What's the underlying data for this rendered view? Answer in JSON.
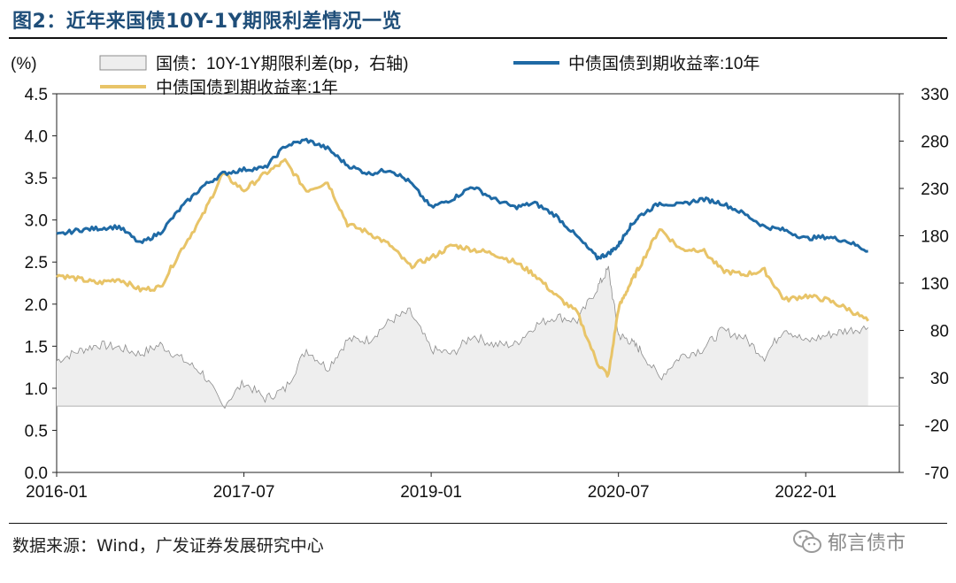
{
  "title": "图2：近年来国债10Y-1Y期限利差情况一览",
  "source": "数据来源：Wind，广发证券发展研究中心",
  "watermark": {
    "text": "郁言债市",
    "icon": "wechat-icon"
  },
  "colors": {
    "series10y": "#1f6aa5",
    "series1y": "#e8c468",
    "spreadFill": "#eeeeee",
    "spreadLine": "#8c8c8c",
    "axis": "#222222"
  },
  "chart_data": {
    "type": "line",
    "title": "图2：近年来国债10Y-1Y期限利差情况一览",
    "ylabel_left": "(%)",
    "left_ylim": [
      0.0,
      4.5
    ],
    "left_ticks": [
      "0.0",
      "0.5",
      "1.0",
      "1.5",
      "2.0",
      "2.5",
      "3.0",
      "3.5",
      "4.0",
      "4.5"
    ],
    "right_ylim": [
      -70,
      330
    ],
    "right_ticks": [
      "-70",
      "-20",
      "30",
      "80",
      "130",
      "180",
      "230",
      "280",
      "330"
    ],
    "x_ticks": [
      "2016-01",
      "2017-07",
      "2019-01",
      "2020-07",
      "2022-01"
    ],
    "legend": [
      {
        "name": "国债：10Y-1Y期限利差(bp，右轴)",
        "kind": "area"
      },
      {
        "name": "中债国债到期收益率:10年",
        "kind": "line"
      },
      {
        "name": "中债国债到期收益率:1年",
        "kind": "line"
      }
    ],
    "x": [
      2016.0,
      2016.17,
      2016.33,
      2016.5,
      2016.67,
      2016.83,
      2017.0,
      2017.17,
      2017.33,
      2017.5,
      2017.67,
      2017.83,
      2018.0,
      2018.17,
      2018.33,
      2018.5,
      2018.67,
      2018.83,
      2019.0,
      2019.17,
      2019.33,
      2019.5,
      2019.67,
      2019.83,
      2020.0,
      2020.17,
      2020.33,
      2020.42,
      2020.5,
      2020.58,
      2020.67,
      2020.83,
      2021.0,
      2021.17,
      2021.33,
      2021.5,
      2021.67,
      2021.83,
      2022.0,
      2022.17,
      2022.33,
      2022.5
    ],
    "series": [
      {
        "name": "中债国债到期收益率:10年",
        "axis": "left",
        "values": [
          2.82,
          2.88,
          2.9,
          2.92,
          2.72,
          2.85,
          3.15,
          3.4,
          3.55,
          3.6,
          3.62,
          3.88,
          3.95,
          3.85,
          3.65,
          3.55,
          3.6,
          3.45,
          3.15,
          3.25,
          3.4,
          3.25,
          3.15,
          3.2,
          3.05,
          2.8,
          2.55,
          2.6,
          2.7,
          2.9,
          3.05,
          3.2,
          3.18,
          3.25,
          3.2,
          3.08,
          2.92,
          2.88,
          2.78,
          2.8,
          2.75,
          2.63
        ]
      },
      {
        "name": "中债国债到期收益率:1年",
        "axis": "left",
        "values": [
          2.35,
          2.3,
          2.25,
          2.3,
          2.17,
          2.2,
          2.65,
          3.05,
          3.55,
          3.35,
          3.55,
          3.7,
          3.35,
          3.45,
          2.95,
          2.85,
          2.7,
          2.45,
          2.55,
          2.7,
          2.65,
          2.6,
          2.5,
          2.35,
          2.1,
          1.9,
          1.3,
          1.15,
          1.95,
          2.2,
          2.45,
          2.9,
          2.65,
          2.65,
          2.4,
          2.35,
          2.4,
          2.05,
          2.1,
          2.05,
          1.95,
          1.8
        ]
      },
      {
        "name": "国债：10Y-1Y期限利差(bp，右轴)",
        "axis": "right",
        "values": [
          48,
          58,
          65,
          62,
          55,
          65,
          50,
          35,
          0,
          25,
          8,
          18,
          60,
          40,
          70,
          70,
          90,
          100,
          60,
          55,
          75,
          65,
          65,
          85,
          95,
          90,
          125,
          145,
          75,
          70,
          60,
          30,
          53,
          60,
          80,
          73,
          52,
          83,
          68,
          75,
          80,
          83
        ]
      }
    ]
  }
}
